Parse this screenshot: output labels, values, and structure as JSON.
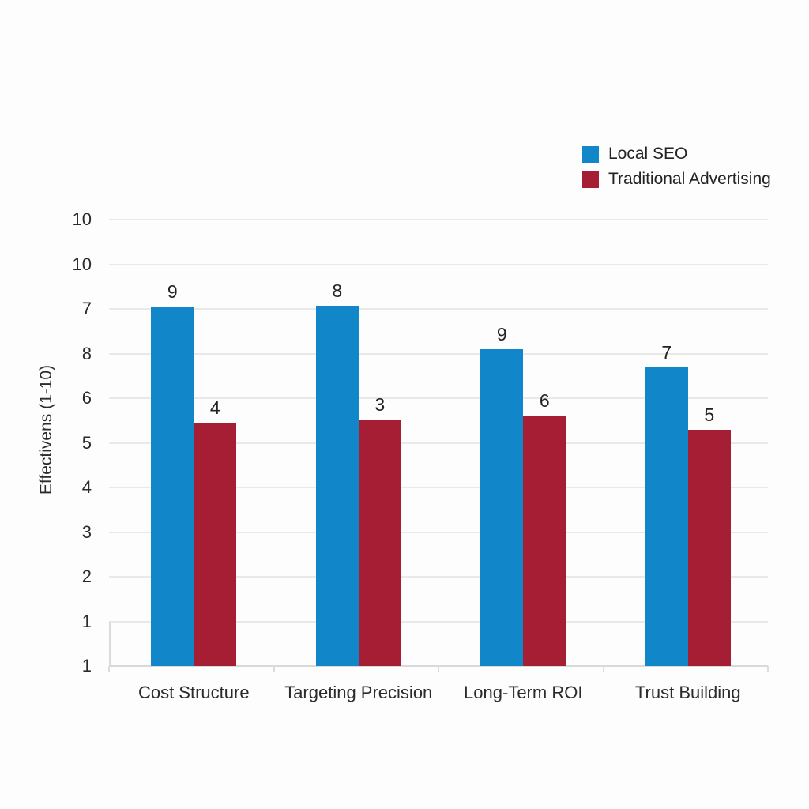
{
  "page": {
    "background": "#fdfdfd"
  },
  "legend": {
    "position": "top-right",
    "items": [
      {
        "label": "Local SEO",
        "color": "#1186C8"
      },
      {
        "label": "Traditional Advertising",
        "color": "#A61E33"
      }
    ]
  },
  "chart_data": {
    "type": "bar",
    "title": "",
    "xlabel": "",
    "ylabel": "Effectivens (1-10)",
    "categories": [
      "Cost Structure",
      "Targeting Precision",
      "Long-Term ROI",
      "Trust Building"
    ],
    "series": [
      {
        "name": "Local SEO",
        "color": "#1186C8",
        "values": [
          9,
          8,
          9,
          7
        ],
        "drawn_height_fracs": [
          0.805,
          0.807,
          0.71,
          0.669
        ]
      },
      {
        "name": "Traditional Advertising",
        "color": "#A61E33",
        "values": [
          4,
          3,
          6,
          5
        ],
        "drawn_height_fracs": [
          0.545,
          0.552,
          0.561,
          0.529
        ]
      }
    ],
    "bar_value_labels": true,
    "y_tick_labels_top_to_bottom": [
      "10",
      "10",
      "7",
      "8",
      "6",
      "5",
      "4",
      "3",
      "2",
      "1",
      "1"
    ],
    "ylim": [
      1,
      10
    ],
    "grid": true,
    "legend_position": "top-right",
    "colors": {
      "grid": "#e9e9e9",
      "axis": "#d9d9d9",
      "text": "#2b2b2b"
    }
  }
}
